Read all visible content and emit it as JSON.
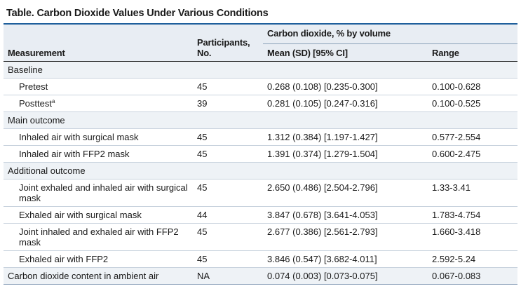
{
  "title": "Table. Carbon Dioxide Values Under Various Conditions",
  "headers": {
    "measurement": "Measurement",
    "participants_line1": "Participants,",
    "participants_line2": "No.",
    "co2_group": "Carbon dioxide, % by volume",
    "mean": "Mean (SD) [95% CI]",
    "range": "Range"
  },
  "groups": {
    "baseline": "Baseline",
    "main": "Main outcome",
    "additional": "Additional outcome"
  },
  "rows": {
    "pretest": {
      "label": "Pretest",
      "n": "45",
      "mean": "0.268 (0.108) [0.235-0.300]",
      "range": "0.100-0.628"
    },
    "posttest": {
      "label": "Posttest",
      "sup": "a",
      "n": "39",
      "mean": "0.281 (0.105) [0.247-0.316]",
      "range": "0.100-0.525"
    },
    "inhaled_surgical": {
      "label": "Inhaled air with surgical mask",
      "n": "45",
      "mean": "1.312 (0.384) [1.197-1.427]",
      "range": "0.577-2.554"
    },
    "inhaled_ffp2": {
      "label": "Inhaled air with FFP2 mask",
      "n": "45",
      "mean": "1.391 (0.374) [1.279-1.504]",
      "range": "0.600-2.475"
    },
    "joint_surgical": {
      "label": "Joint exhaled and inhaled air with surgical mask",
      "n": "45",
      "mean": "2.650 (0.486) [2.504-2.796]",
      "range": "1.33-3.41"
    },
    "exhaled_surgical": {
      "label": "Exhaled air with surgical mask",
      "n": "44",
      "mean": "3.847 (0.678) [3.641-4.053]",
      "range": "1.783-4.754"
    },
    "joint_ffp2": {
      "label": "Joint inhaled and exhaled air with FFP2 mask",
      "n": "45",
      "mean": "2.677 (0.386) [2.561-2.793]",
      "range": "1.660-3.418"
    },
    "exhaled_ffp2": {
      "label": "Exhaled air with FFP2",
      "n": "45",
      "mean": "3.846 (0.547) [3.682-4.011]",
      "range": "2.592-5.24"
    },
    "ambient": {
      "label": "Carbon dioxide content in ambient air",
      "n": "NA",
      "mean": "0.074 (0.003) [0.073-0.075]",
      "range": "0.067-0.083"
    }
  },
  "colors": {
    "accent_rule": "#1f5f9c",
    "header_bg": "#e8edf3",
    "group_bg": "#eef2f6"
  }
}
